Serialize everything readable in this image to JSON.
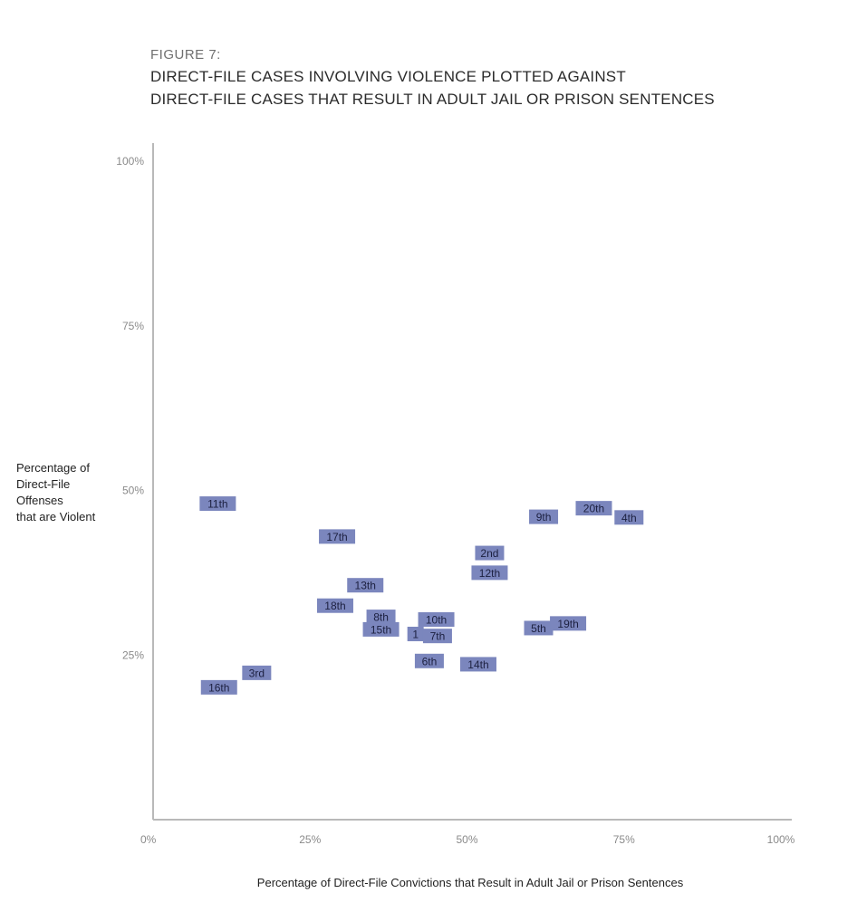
{
  "figure_label": "FIGURE 7:",
  "title_lines": [
    "DIRECT-FILE CASES INVOLVING VIOLENCE PLOTTED AGAINST",
    "DIRECT-FILE CASES THAT RESULT IN ADULT JAIL OR PRISON SENTENCES"
  ],
  "ylabel_lines": [
    "Percentage of",
    "Direct-File",
    "Offenses",
    "that are Violent"
  ],
  "xlabel": "Percentage of Direct-File Convictions that Result in Adult Jail or Prison Sentences",
  "colors": {
    "marker_fill": "#7b86bd",
    "marker_text": "#1c2040",
    "axis": "#b9b9b9",
    "tick_text": "#8a8a8a"
  },
  "chart_data": {
    "type": "scatter",
    "title": "DIRECT-FILE CASES INVOLVING VIOLENCE PLOTTED AGAINST DIRECT-FILE CASES THAT RESULT IN ADULT JAIL OR PRISON SENTENCES",
    "xlabel": "Percentage of Direct-File Convictions that Result in Adult Jail or Prison Sentences",
    "ylabel": "Percentage of Direct-File Offenses that are Violent",
    "xlim": [
      0,
      100
    ],
    "ylim": [
      0,
      100
    ],
    "x_ticks": [
      "0%",
      "25%",
      "50%",
      "75%",
      "100%"
    ],
    "y_ticks": [
      "25%",
      "50%",
      "75%",
      "100%"
    ],
    "grid": false,
    "points": [
      {
        "label": "11th",
        "x": 10.3,
        "y": 48.0
      },
      {
        "label": "16th",
        "x": 10.5,
        "y": 20.1
      },
      {
        "label": "3rd",
        "x": 16.5,
        "y": 22.3
      },
      {
        "label": "17th",
        "x": 29.3,
        "y": 43.0
      },
      {
        "label": "13th",
        "x": 33.8,
        "y": 35.6
      },
      {
        "label": "18th",
        "x": 29.0,
        "y": 32.5
      },
      {
        "label": "8th",
        "x": 36.3,
        "y": 30.8
      },
      {
        "label": "15th",
        "x": 36.3,
        "y": 28.9
      },
      {
        "label": "1",
        "x": 41.8,
        "y": 28.2
      },
      {
        "label": "7th",
        "x": 45.3,
        "y": 27.9
      },
      {
        "label": "10th",
        "x": 45.1,
        "y": 30.4
      },
      {
        "label": "6th",
        "x": 44.0,
        "y": 24.1
      },
      {
        "label": "14th",
        "x": 51.8,
        "y": 23.6
      },
      {
        "label": "2nd",
        "x": 53.6,
        "y": 40.5
      },
      {
        "label": "12th",
        "x": 53.6,
        "y": 37.5
      },
      {
        "label": "5th",
        "x": 61.4,
        "y": 29.1
      },
      {
        "label": "19th",
        "x": 66.1,
        "y": 29.8
      },
      {
        "label": "9th",
        "x": 62.2,
        "y": 46.0
      },
      {
        "label": "20th",
        "x": 70.2,
        "y": 47.3
      },
      {
        "label": "4th",
        "x": 75.8,
        "y": 45.9
      }
    ]
  }
}
